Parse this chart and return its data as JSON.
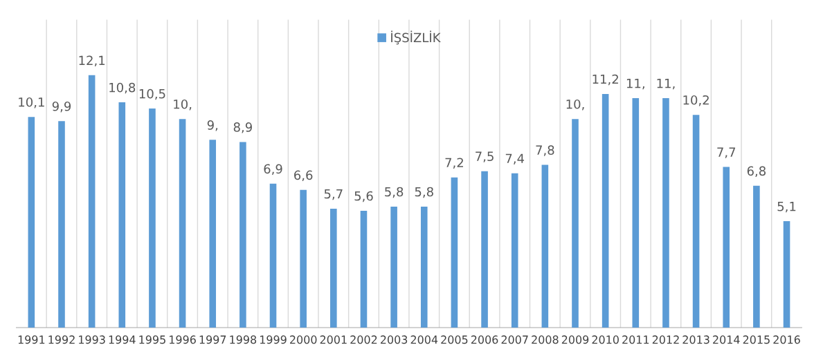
{
  "chart_data": {
    "type": "bar",
    "categories": [
      "1991",
      "1992",
      "1993",
      "1994",
      "1995",
      "1996",
      "1997",
      "1998",
      "1999",
      "2000",
      "2001",
      "2002",
      "2003",
      "2004",
      "2005",
      "2006",
      "2007",
      "2008",
      "2009",
      "2010",
      "2011",
      "2012",
      "2013",
      "2014",
      "2015",
      "2016"
    ],
    "series": [
      {
        "name": "İŞSİZLİK",
        "color": "#5b9bd5",
        "values": [
          10.1,
          9.9,
          12.1,
          10.8,
          10.5,
          10.0,
          9.0,
          8.9,
          6.9,
          6.6,
          5.7,
          5.6,
          5.8,
          5.8,
          7.2,
          7.5,
          7.4,
          7.8,
          10.0,
          11.2,
          11.0,
          11.0,
          10.2,
          7.7,
          6.8,
          5.1
        ],
        "value_labels": [
          "10,1",
          "9,9",
          "12,1",
          "10,8",
          "10,5",
          "10,",
          "9,",
          "8,9",
          "6,9",
          "6,6",
          "5,7",
          "5,6",
          "5,8",
          "5,8",
          "7,2",
          "7,5",
          "7,4",
          "7,8",
          "10,",
          "11,2",
          "11,",
          "11,",
          "10,2",
          "7,7",
          "6,8",
          "5,1"
        ]
      }
    ],
    "grid": "x",
    "legend": "top",
    "tick_labels": "x"
  }
}
